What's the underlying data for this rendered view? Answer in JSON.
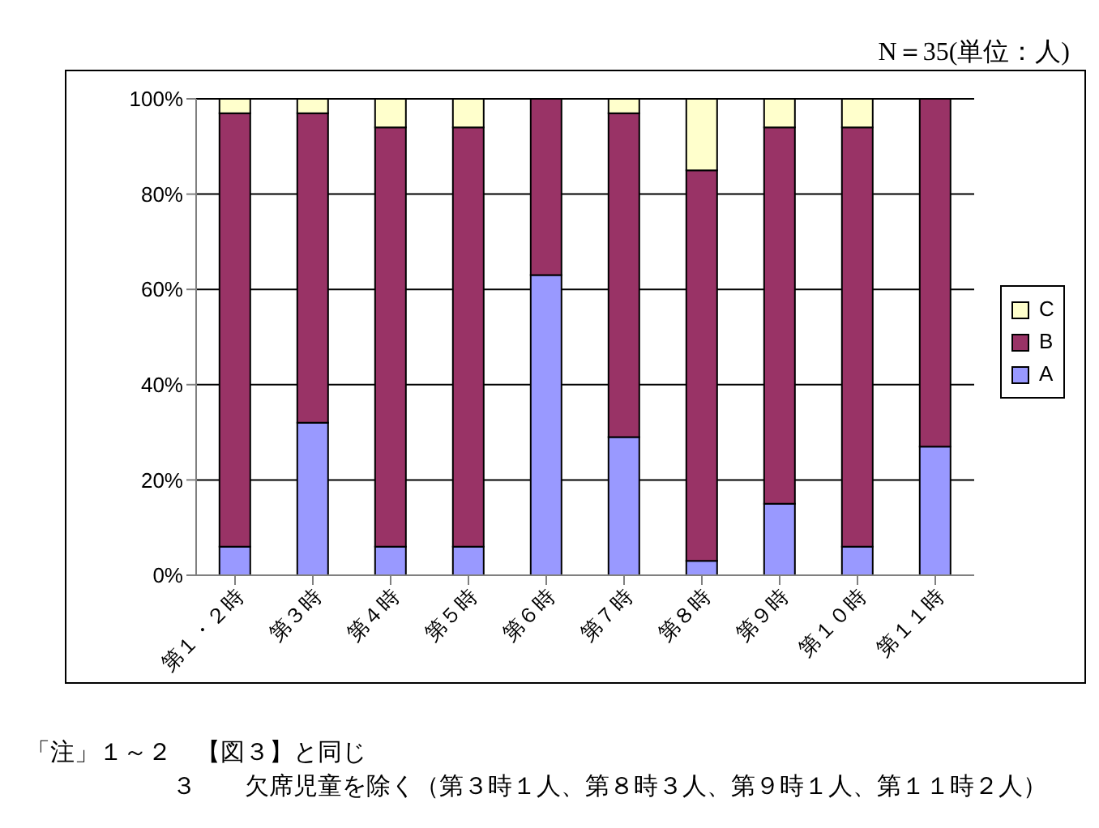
{
  "chart_data": {
    "type": "bar",
    "stacked": true,
    "subtitle": "N＝35(単位：人)",
    "categories": [
      "第１・２時",
      "第３時",
      "第４時",
      "第５時",
      "第６時",
      "第７時",
      "第８時",
      "第９時",
      "第１０時",
      "第１１時"
    ],
    "series": [
      {
        "name": "A",
        "color": "#9999ff",
        "values": [
          6,
          32,
          6,
          6,
          63,
          29,
          3,
          15,
          6,
          27
        ]
      },
      {
        "name": "B",
        "color": "#993366",
        "values": [
          91,
          65,
          88,
          88,
          37,
          68,
          82,
          79,
          88,
          73
        ]
      },
      {
        "name": "C",
        "color": "#ffffcc",
        "values": [
          3,
          3,
          6,
          6,
          0,
          3,
          15,
          6,
          6,
          0
        ]
      }
    ],
    "ylim": [
      0,
      100
    ],
    "yticks": [
      {
        "value": 0,
        "label": "0%"
      },
      {
        "value": 20,
        "label": "20%"
      },
      {
        "value": 40,
        "label": "40%"
      },
      {
        "value": 60,
        "label": "60%"
      },
      {
        "value": 80,
        "label": "80%"
      },
      {
        "value": 100,
        "label": "100%"
      }
    ],
    "grid": "y",
    "legend": "right",
    "annotations": [
      "「注」１～２　【図３】と同じ",
      "３　　欠席児童を除く（第３時１人、第８時３人、第９時１人、第１１時２人）"
    ]
  }
}
